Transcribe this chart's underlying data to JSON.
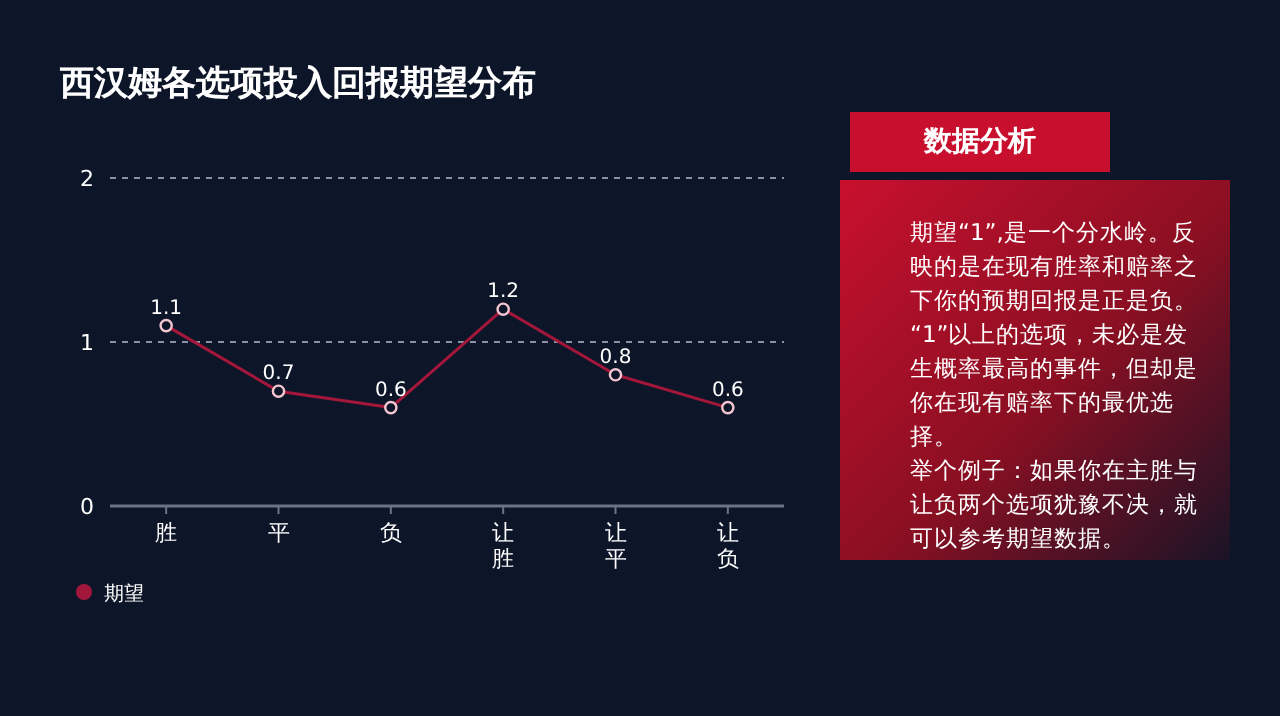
{
  "chart_data": [
    {
      "type": "line",
      "title": "西汉姆各选项投入回报期望分布",
      "categories": [
        "胜",
        "平",
        "负",
        "让胜",
        "让平",
        "让负"
      ],
      "series": [
        {
          "name": "期望",
          "color": "#a3173a",
          "values": [
            1.1,
            0.7,
            0.6,
            1.2,
            0.8,
            0.6
          ]
        }
      ],
      "ylim": [
        0,
        2
      ],
      "yticks": [
        0,
        1,
        2
      ],
      "grid": "y",
      "legend": "bottom left",
      "data_labels": true,
      "marker": "circle",
      "line_style": "solid"
    },
    {
      "type": "other",
      "title": "数据分析",
      "annotations": [
        "期望“1”,是一个分水岭。反映的是在现有胜率和赔率之下你的预期回报是正是负。",
        "“1”以上的选项，未必是发生概率最高的事件，但却是你在现有赔率下的最优选择。",
        "举个例子：如果你在主胜与让负两个选项犹豫不决，就可以参考期望数据。"
      ]
    }
  ]
}
